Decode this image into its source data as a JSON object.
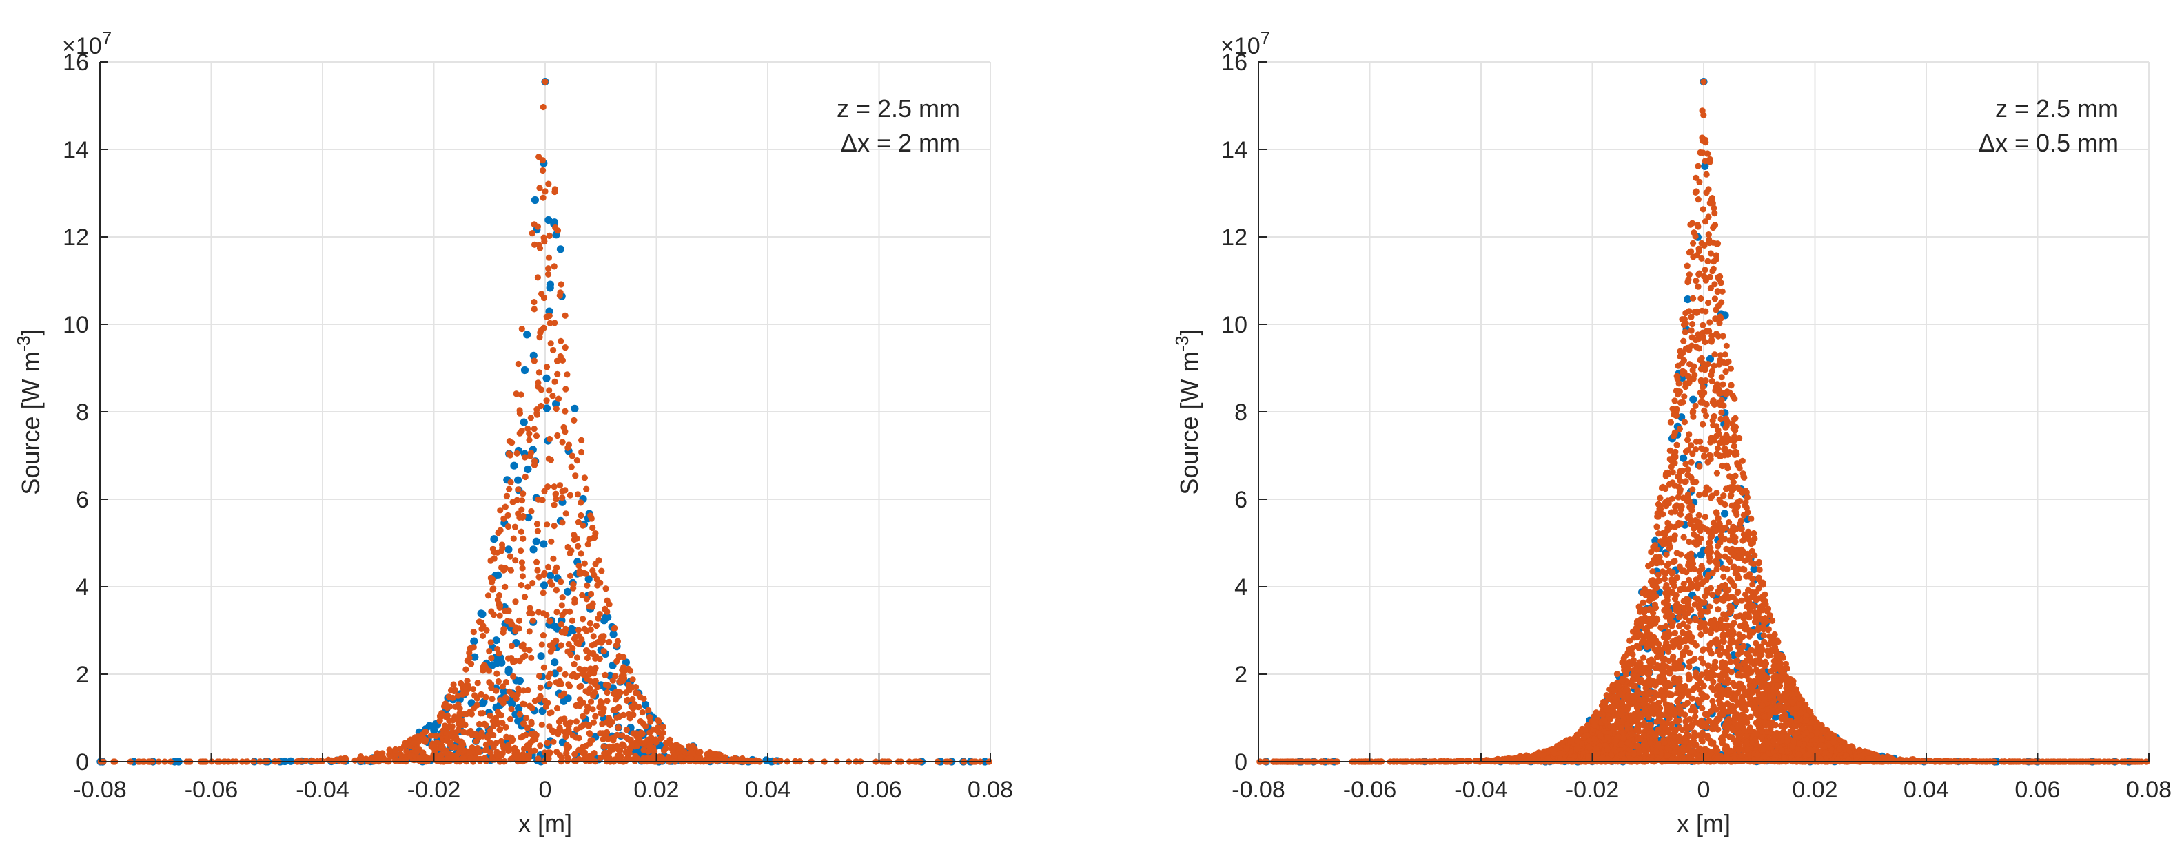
{
  "chart_data": [
    {
      "type": "scatter",
      "xlabel": "x [m]",
      "ylabel_main": "Source [W m",
      "ylabel_sup": "-3",
      "ylabel_end": "]",
      "exponent_prefix": "×10",
      "exponent_power": "7",
      "xlim": [
        -0.08,
        0.08
      ],
      "ylim": [
        0,
        16
      ],
      "y_scale_factor": 10000000,
      "xticks": [
        -0.08,
        -0.06,
        -0.04,
        -0.02,
        0,
        0.02,
        0.04,
        0.06,
        0.08
      ],
      "xtick_labels": [
        "-0.08",
        "-0.06",
        "-0.04",
        "-0.02",
        "0",
        "0.02",
        "0.04",
        "0.06",
        "0.08"
      ],
      "yticks": [
        0,
        2,
        4,
        6,
        8,
        10,
        12,
        14,
        16
      ],
      "ytick_labels": [
        "0",
        "2",
        "4",
        "6",
        "8",
        "10",
        "12",
        "14",
        "16"
      ],
      "grid": true,
      "annotations": [
        "z = 2.5 mm",
        "Δx = 2 mm"
      ],
      "series": [
        {
          "color": "#0072BD",
          "peak": 15.55,
          "width": 0.0135,
          "points": 320,
          "seed": 11
        },
        {
          "color": "#D95319",
          "peak": 15.55,
          "width": 0.0135,
          "points": 1400,
          "seed": 23
        }
      ]
    },
    {
      "type": "scatter",
      "xlabel": "x [m]",
      "ylabel_main": "Source [W m",
      "ylabel_sup": "-3",
      "ylabel_end": "]",
      "exponent_prefix": "×10",
      "exponent_power": "7",
      "xlim": [
        -0.08,
        0.08
      ],
      "ylim": [
        0,
        16
      ],
      "y_scale_factor": 10000000,
      "xticks": [
        -0.08,
        -0.06,
        -0.04,
        -0.02,
        0,
        0.02,
        0.04,
        0.06,
        0.08
      ],
      "xtick_labels": [
        "-0.08",
        "-0.06",
        "-0.04",
        "-0.02",
        "0",
        "0.02",
        "0.04",
        "0.06",
        "0.08"
      ],
      "yticks": [
        0,
        2,
        4,
        6,
        8,
        10,
        12,
        14,
        16
      ],
      "ytick_labels": [
        "0",
        "2",
        "4",
        "6",
        "8",
        "10",
        "12",
        "14",
        "16"
      ],
      "grid": true,
      "annotations": [
        "z = 2.5 mm",
        "Δx = 0.5 mm"
      ],
      "series": [
        {
          "color": "#0072BD",
          "peak": 15.55,
          "width": 0.0135,
          "points": 320,
          "seed": 37
        },
        {
          "color": "#D95319",
          "peak": 15.55,
          "width": 0.0135,
          "points": 4200,
          "seed": 53
        }
      ]
    }
  ]
}
